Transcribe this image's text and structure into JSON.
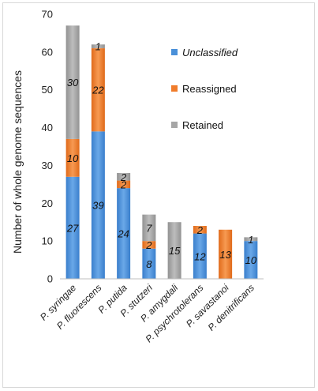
{
  "chart_data": {
    "type": "bar",
    "stacked": true,
    "title": "",
    "xlabel": "",
    "ylabel": "Number of whole genome sequences",
    "ylim": [
      0,
      70
    ],
    "yticks": [
      0,
      10,
      20,
      30,
      40,
      50,
      60,
      70
    ],
    "categories": [
      "P. syringae",
      "P. fluorescens",
      "P. putida",
      "P. stutzeri",
      "P. amygdali",
      "P. psychrotolerans",
      "P. savastanoi",
      "P. denitrificans"
    ],
    "series": [
      {
        "name": "Unclassified",
        "values": [
          27,
          39,
          24,
          8,
          0,
          12,
          0,
          10
        ],
        "labels": [
          "27",
          "39",
          "24",
          "8",
          "",
          "12",
          "",
          "10"
        ],
        "color": "#4a90d9",
        "italic": true
      },
      {
        "name": "Reassigned",
        "values": [
          10,
          22,
          2,
          2,
          0,
          2,
          13,
          0
        ],
        "labels": [
          "10",
          "22",
          "2",
          "2",
          "",
          "2",
          "13",
          ""
        ],
        "color": "#f07c2b",
        "italic": false
      },
      {
        "name": "Retained",
        "values": [
          30,
          1,
          2,
          7,
          15,
          0,
          0,
          1
        ],
        "labels": [
          "30",
          "1",
          "2",
          "7",
          "15",
          "",
          "",
          "1"
        ],
        "color": "#a6a6a6",
        "italic": false
      }
    ],
    "legend_position": "top-right",
    "grid": false
  }
}
